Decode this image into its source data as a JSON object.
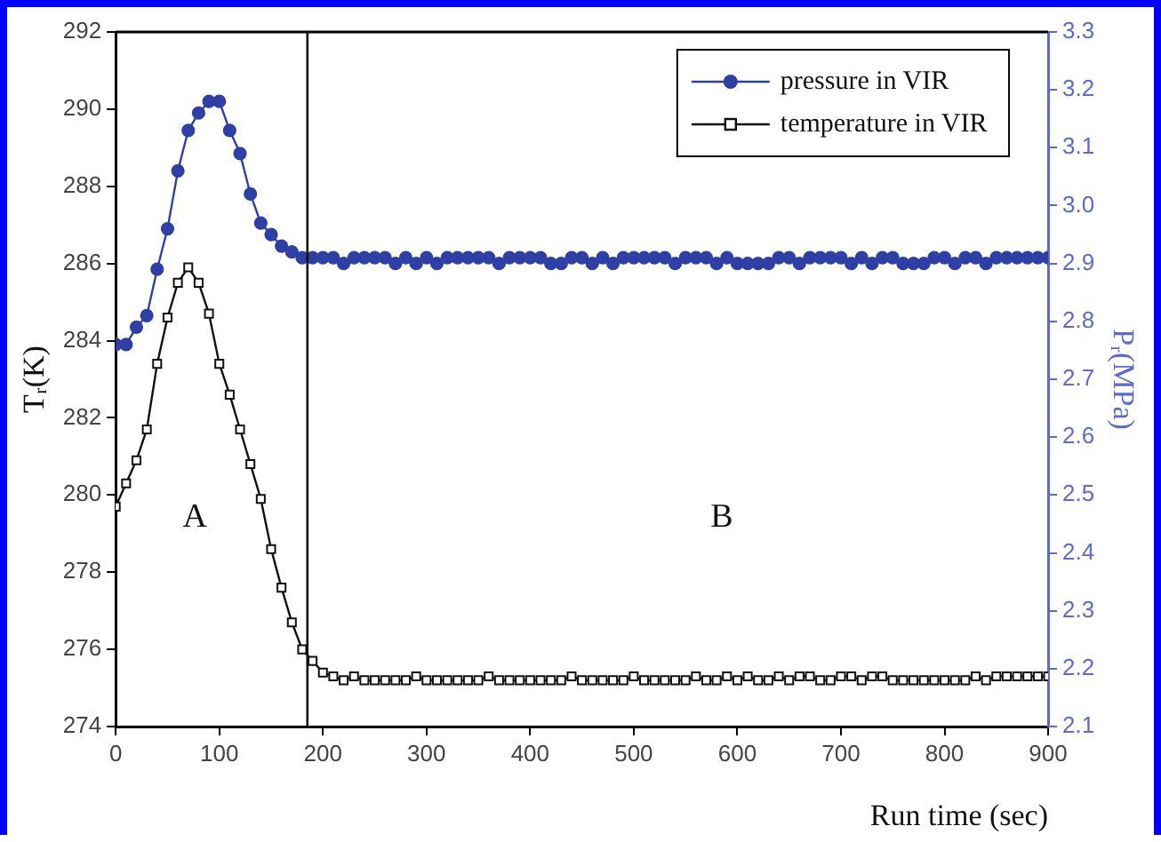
{
  "chart_data": {
    "type": "line",
    "xlabel": "Run time (sec)",
    "ylabel": "Tᵣ(K)",
    "y2label": "Pᵣ(MPa)",
    "x": [
      0,
      10,
      20,
      30,
      40,
      50,
      60,
      70,
      80,
      90,
      100,
      110,
      120,
      130,
      140,
      150,
      160,
      170,
      180,
      190,
      200,
      210,
      220,
      230,
      240,
      250,
      260,
      270,
      280,
      290,
      300,
      310,
      320,
      330,
      340,
      350,
      360,
      370,
      380,
      390,
      400,
      410,
      420,
      430,
      440,
      450,
      460,
      470,
      480,
      490,
      500,
      510,
      520,
      530,
      540,
      550,
      560,
      570,
      580,
      590,
      600,
      610,
      620,
      630,
      640,
      650,
      660,
      670,
      680,
      690,
      700,
      710,
      720,
      730,
      740,
      750,
      760,
      770,
      780,
      790,
      800,
      810,
      820,
      830,
      840,
      850,
      860,
      870,
      880,
      890,
      900
    ],
    "series": [
      {
        "name": "pressure in VIR",
        "color": "#2e3fa6",
        "axis": "y2",
        "marker": "circle",
        "values": [
          2.76,
          2.76,
          2.79,
          2.81,
          2.89,
          2.96,
          3.06,
          3.13,
          3.16,
          3.18,
          3.18,
          3.13,
          3.09,
          3.02,
          2.97,
          2.95,
          2.93,
          2.92,
          2.91,
          2.91,
          2.91,
          2.91,
          2.9,
          2.91,
          2.91,
          2.91,
          2.91,
          2.9,
          2.91,
          2.9,
          2.91,
          2.9,
          2.91,
          2.91,
          2.91,
          2.91,
          2.91,
          2.9,
          2.91,
          2.91,
          2.91,
          2.91,
          2.9,
          2.9,
          2.91,
          2.91,
          2.9,
          2.91,
          2.9,
          2.91,
          2.91,
          2.91,
          2.91,
          2.91,
          2.9,
          2.91,
          2.91,
          2.91,
          2.9,
          2.91,
          2.9,
          2.9,
          2.9,
          2.9,
          2.91,
          2.91,
          2.9,
          2.91,
          2.91,
          2.91,
          2.91,
          2.9,
          2.91,
          2.9,
          2.91,
          2.91,
          2.9,
          2.9,
          2.9,
          2.91,
          2.91,
          2.9,
          2.91,
          2.91,
          2.9,
          2.91,
          2.91,
          2.91,
          2.91,
          2.91,
          2.91
        ]
      },
      {
        "name": "temperature in VIR",
        "color": "#111111",
        "marker": "square",
        "values": [
          279.7,
          280.3,
          280.9,
          281.7,
          283.4,
          284.6,
          285.5,
          285.9,
          285.5,
          284.7,
          283.4,
          282.6,
          281.7,
          280.8,
          279.9,
          278.6,
          277.6,
          276.7,
          276.0,
          275.7,
          275.4,
          275.3,
          275.2,
          275.3,
          275.2,
          275.2,
          275.2,
          275.2,
          275.2,
          275.3,
          275.2,
          275.2,
          275.2,
          275.2,
          275.2,
          275.2,
          275.3,
          275.2,
          275.2,
          275.2,
          275.2,
          275.2,
          275.2,
          275.2,
          275.3,
          275.2,
          275.2,
          275.2,
          275.2,
          275.2,
          275.3,
          275.2,
          275.2,
          275.2,
          275.2,
          275.2,
          275.3,
          275.2,
          275.2,
          275.3,
          275.2,
          275.3,
          275.2,
          275.2,
          275.3,
          275.2,
          275.3,
          275.3,
          275.2,
          275.2,
          275.3,
          275.3,
          275.2,
          275.3,
          275.3,
          275.2,
          275.2,
          275.2,
          275.2,
          275.2,
          275.2,
          275.2,
          275.2,
          275.3,
          275.2,
          275.3,
          275.3,
          275.3,
          275.3,
          275.3,
          275.3
        ]
      }
    ],
    "xlim": [
      0,
      900
    ],
    "xticks": [
      0,
      100,
      200,
      300,
      400,
      500,
      600,
      700,
      800,
      900
    ],
    "ylim": [
      274,
      292
    ],
    "yticks": [
      274,
      276,
      278,
      280,
      282,
      284,
      286,
      288,
      290,
      292
    ],
    "y2lim": [
      2.1,
      3.3
    ],
    "y2ticks": [
      {
        "value": 2.1,
        "label": "2.1"
      },
      {
        "value": 2.2,
        "label": "2.2"
      },
      {
        "value": 2.3,
        "label": "2.3"
      },
      {
        "value": 2.4,
        "label": "2.4"
      },
      {
        "value": 2.5,
        "label": "2.5"
      },
      {
        "value": 2.6,
        "label": "2.6"
      },
      {
        "value": 2.7,
        "label": "2.7"
      },
      {
        "value": 2.8,
        "label": "2.8"
      },
      {
        "value": 2.9,
        "label": "2.9"
      },
      {
        "value": 3.0,
        "label": "3.0"
      },
      {
        "value": 3.1,
        "label": "3.1"
      },
      {
        "value": 3.2,
        "label": "3.2"
      },
      {
        "value": 3.3,
        "label": "3.3"
      }
    ],
    "ref_lines": [
      {
        "axis": "x",
        "value": 185,
        "color": "#111111"
      }
    ],
    "annotations": [
      "A",
      "B"
    ],
    "grid": false,
    "legend": "top right",
    "line_style": "solid"
  }
}
